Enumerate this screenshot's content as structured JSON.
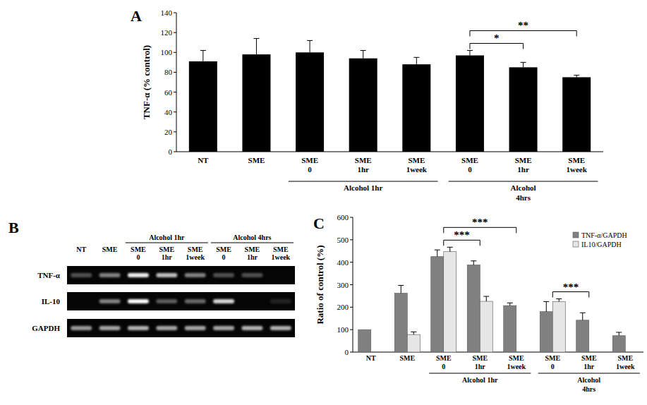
{
  "chart_data": [
    {
      "type": "bar",
      "title": "A",
      "y_label": "TNF-α (% control)",
      "categories": [
        "NT",
        "SME",
        "SME\n0",
        "SME\n1hr",
        "SME\n1week",
        "SME\n0",
        "SME\n1hr",
        "SME\n1week"
      ],
      "values": [
        91,
        98,
        100,
        94,
        88,
        97,
        85,
        75
      ],
      "errors": [
        11,
        16,
        12,
        8,
        7,
        5,
        5,
        2
      ],
      "color": "#000000",
      "ylim": [
        0,
        140
      ],
      "yticks": [
        0,
        20,
        40,
        60,
        80,
        100,
        120,
        140
      ],
      "grid": false,
      "groups": [
        {
          "label": "Alcohol 1hr",
          "from": 2,
          "to": 4
        },
        {
          "label": "Alcohol\n4hrs",
          "from": 5,
          "to": 7
        }
      ],
      "annotations": [
        {
          "text": "*",
          "from": 5,
          "to": 6
        },
        {
          "text": "**",
          "from": 5,
          "to": 7
        }
      ]
    },
    {
      "type": "gel",
      "title": "B",
      "categories": [
        "NT",
        "SME",
        "SME\n0",
        "SME\n1hr",
        "SME\n1week",
        "SME\n0",
        "SME\n1hr",
        "SME\n1week"
      ],
      "groups": [
        {
          "label": "Alcohol 1hr",
          "from": 2,
          "to": 4
        },
        {
          "label": "Alcohol 4hrs",
          "from": 5,
          "to": 7
        }
      ],
      "rows": [
        {
          "name": "TNF-α",
          "values": [
            0.3,
            0.5,
            0.95,
            0.75,
            0.5,
            0.3,
            0.3,
            0
          ]
        },
        {
          "name": "IL-10",
          "values": [
            0,
            0.5,
            1,
            0.35,
            0.4,
            0.85,
            0,
            0.12
          ]
        },
        {
          "name": "GAPDH",
          "values": [
            0.6,
            0.65,
            0.7,
            0.65,
            0.65,
            0.65,
            0.7,
            0.7
          ]
        }
      ]
    },
    {
      "type": "bar",
      "title": "C",
      "y_label": "Ratio of control (%)",
      "categories": [
        "NT",
        "SME",
        "SME\n0",
        "SME\n1hr",
        "SME\n1week",
        "SME\n0",
        "SME\n1hr",
        "SME\n1week"
      ],
      "series": [
        {
          "name": "TNF-α/GAPDH",
          "color": "#808080",
          "values": [
            100,
            262,
            425,
            388,
            207,
            180,
            142,
            73
          ],
          "errors": [
            null,
            35,
            30,
            18,
            12,
            45,
            33,
            15
          ]
        },
        {
          "name": "IL10/GAPDH",
          "color": "#e6e6e6",
          "values": [
            null,
            78,
            447,
            226,
            null,
            225,
            null,
            null
          ],
          "errors": [
            null,
            12,
            20,
            22,
            null,
            12,
            null,
            null
          ]
        }
      ],
      "ylim": [
        0,
        600
      ],
      "yticks": [
        0,
        100,
        200,
        300,
        400,
        500,
        600
      ],
      "grid": false,
      "legend": "top-right",
      "groups": [
        {
          "label": "Alcohol 1hr",
          "from": 2,
          "to": 4
        },
        {
          "label": "Alcohol\n4hrs",
          "from": 5,
          "to": 7
        }
      ],
      "annotations": [
        {
          "text": "***",
          "from": 2,
          "to": 3
        },
        {
          "text": "***",
          "from": 2,
          "to": 4
        },
        {
          "text": "***",
          "from": 5,
          "to": 6
        }
      ]
    }
  ]
}
